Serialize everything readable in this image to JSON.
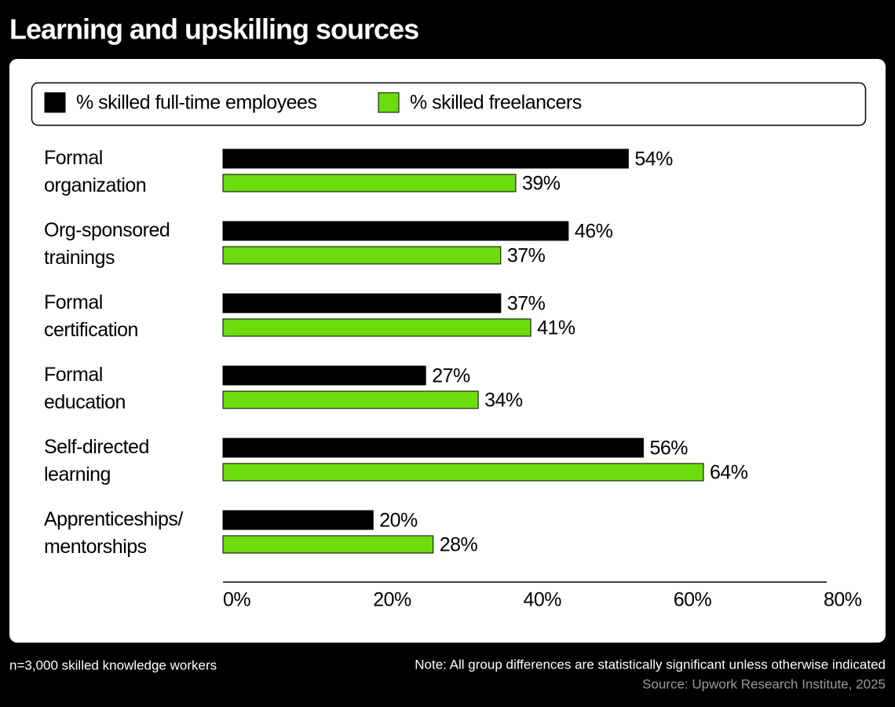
{
  "chart_data": {
    "type": "hbar",
    "title": "Learning and upskilling sources",
    "categories": [
      "Formal\norganization",
      "Org-sponsored\ntrainings",
      "Formal\ncertification",
      "Formal\neducation",
      "Self-directed\nlearning",
      "Apprenticeships/\nmentorships"
    ],
    "series": [
      {
        "name": "% skilled full-time employees",
        "color": "#000000",
        "values": [
          54,
          46,
          37,
          27,
          56,
          20
        ],
        "value_labels": [
          "54%",
          "46%",
          "37%",
          "27%",
          "56%",
          "20%"
        ]
      },
      {
        "name": "% skilled freelancers",
        "color": "#6ddc0f",
        "values": [
          39,
          37,
          41,
          34,
          64,
          28
        ],
        "value_labels": [
          "39%",
          "37%",
          "41%",
          "34%",
          "64%",
          "28%"
        ]
      }
    ],
    "xlim": [
      0,
      80
    ],
    "xticks": [
      {
        "value": 0,
        "label": "0%"
      },
      {
        "value": 20,
        "label": "20%"
      },
      {
        "value": 40,
        "label": "40%"
      },
      {
        "value": 60,
        "label": "60%"
      },
      {
        "value": 80,
        "label": "80%"
      }
    ],
    "sample": "n=3,000 skilled knowledge workers",
    "note": "Note: All group differences are statistically significant unless otherwise indicated",
    "source": "Source: Upwork Research Institute, 2025"
  }
}
